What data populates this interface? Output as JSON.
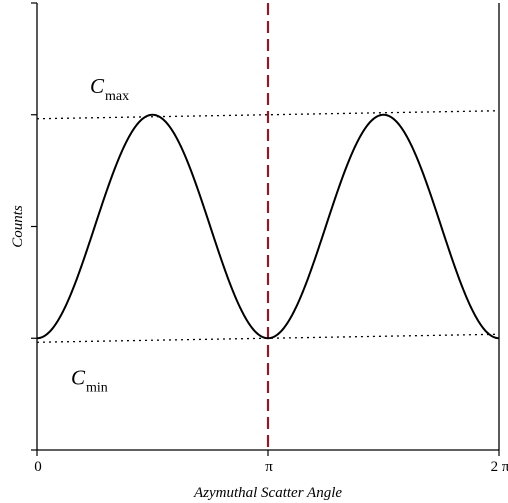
{
  "chart_data": {
    "type": "line",
    "title": "",
    "xlabel": "Azymuthal Scatter Angle",
    "ylabel": "Counts",
    "xlim": [
      0,
      6.283185
    ],
    "ylim": [
      -1.0,
      3.0
    ],
    "x_ticks": [
      {
        "value": 0,
        "label": "0"
      },
      {
        "value": 3.141593,
        "label": "π"
      },
      {
        "value": 6.283185,
        "label": "2 π"
      }
    ],
    "y_ticks": [
      -1.0,
      0.0,
      1.0,
      2.0,
      3.0
    ],
    "series": [
      {
        "function": "cos(2x)",
        "min": 0.0,
        "max": 2.0,
        "x_range": [
          0,
          6.283185
        ],
        "color": "#000000"
      }
    ],
    "reference_lines": [
      {
        "orientation": "vertical",
        "x": 3.141593,
        "style": "dashed",
        "color": "#8b1a2a"
      },
      {
        "orientation": "horizontal",
        "y": 2.0,
        "style": "dotted",
        "color": "#000000"
      },
      {
        "orientation": "horizontal",
        "y": 0.0,
        "style": "dotted",
        "color": "#000000"
      }
    ],
    "annotations": [
      {
        "name": "c-max",
        "main": "C",
        "sub": "max",
        "y": 2.0,
        "placement": "above"
      },
      {
        "name": "c-min",
        "main": "C",
        "sub": "min",
        "y": 0.0,
        "placement": "below"
      }
    ],
    "grid": false,
    "legend": "none"
  }
}
